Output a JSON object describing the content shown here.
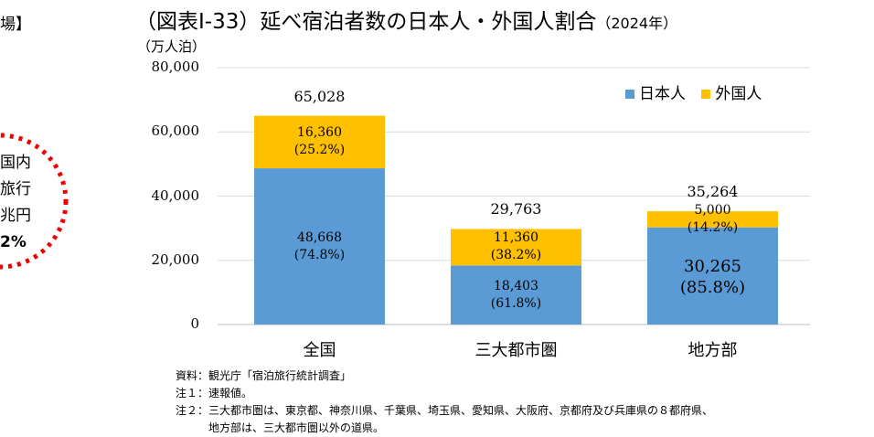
{
  "left_fragment": {
    "heading": "場】",
    "lines": [
      "国内",
      "旅行",
      "兆円",
      "2%"
    ]
  },
  "chart_data": {
    "type": "bar",
    "stacked": true,
    "title": "（図表Ⅰ-33）延べ宿泊者数の日本人・外国人割合",
    "title_suffix": "（2024年）",
    "ylabel": "（万人泊）",
    "ylim": [
      0,
      80000
    ],
    "yticks": [
      "0",
      "20,000",
      "40,000",
      "60,000",
      "80,000"
    ],
    "grid": true,
    "legend": "top-right",
    "categories": [
      "全国",
      "三大都市圏",
      "地方部"
    ],
    "series": [
      {
        "name": "日本人",
        "color": "#5b9bd5",
        "values": [
          48668,
          18403,
          30265
        ],
        "labels": [
          "48,668",
          "18,403",
          "30,265"
        ],
        "shares": [
          "(74.8%)",
          "(61.8%)",
          "(85.8%)"
        ]
      },
      {
        "name": "外国人",
        "color": "#ffc000",
        "values": [
          16360,
          11360,
          5000
        ],
        "labels": [
          "16,360",
          "11,360",
          "5,000"
        ],
        "shares": [
          "(25.2%)",
          "(38.2%)",
          "(14.2%)"
        ]
      }
    ],
    "totals": [
      "65,028",
      "29,763",
      "35,264"
    ]
  },
  "notes": [
    "資料：観光庁「宿泊旅行統計調査」",
    "注１：速報値。",
    "注２：三大都市圏は、東京都、神奈川県、千葉県、埼玉県、愛知県、大阪府、京都府及び兵庫県の８都府県、",
    "　　　地方部は、三大都市圏以外の道県。"
  ]
}
